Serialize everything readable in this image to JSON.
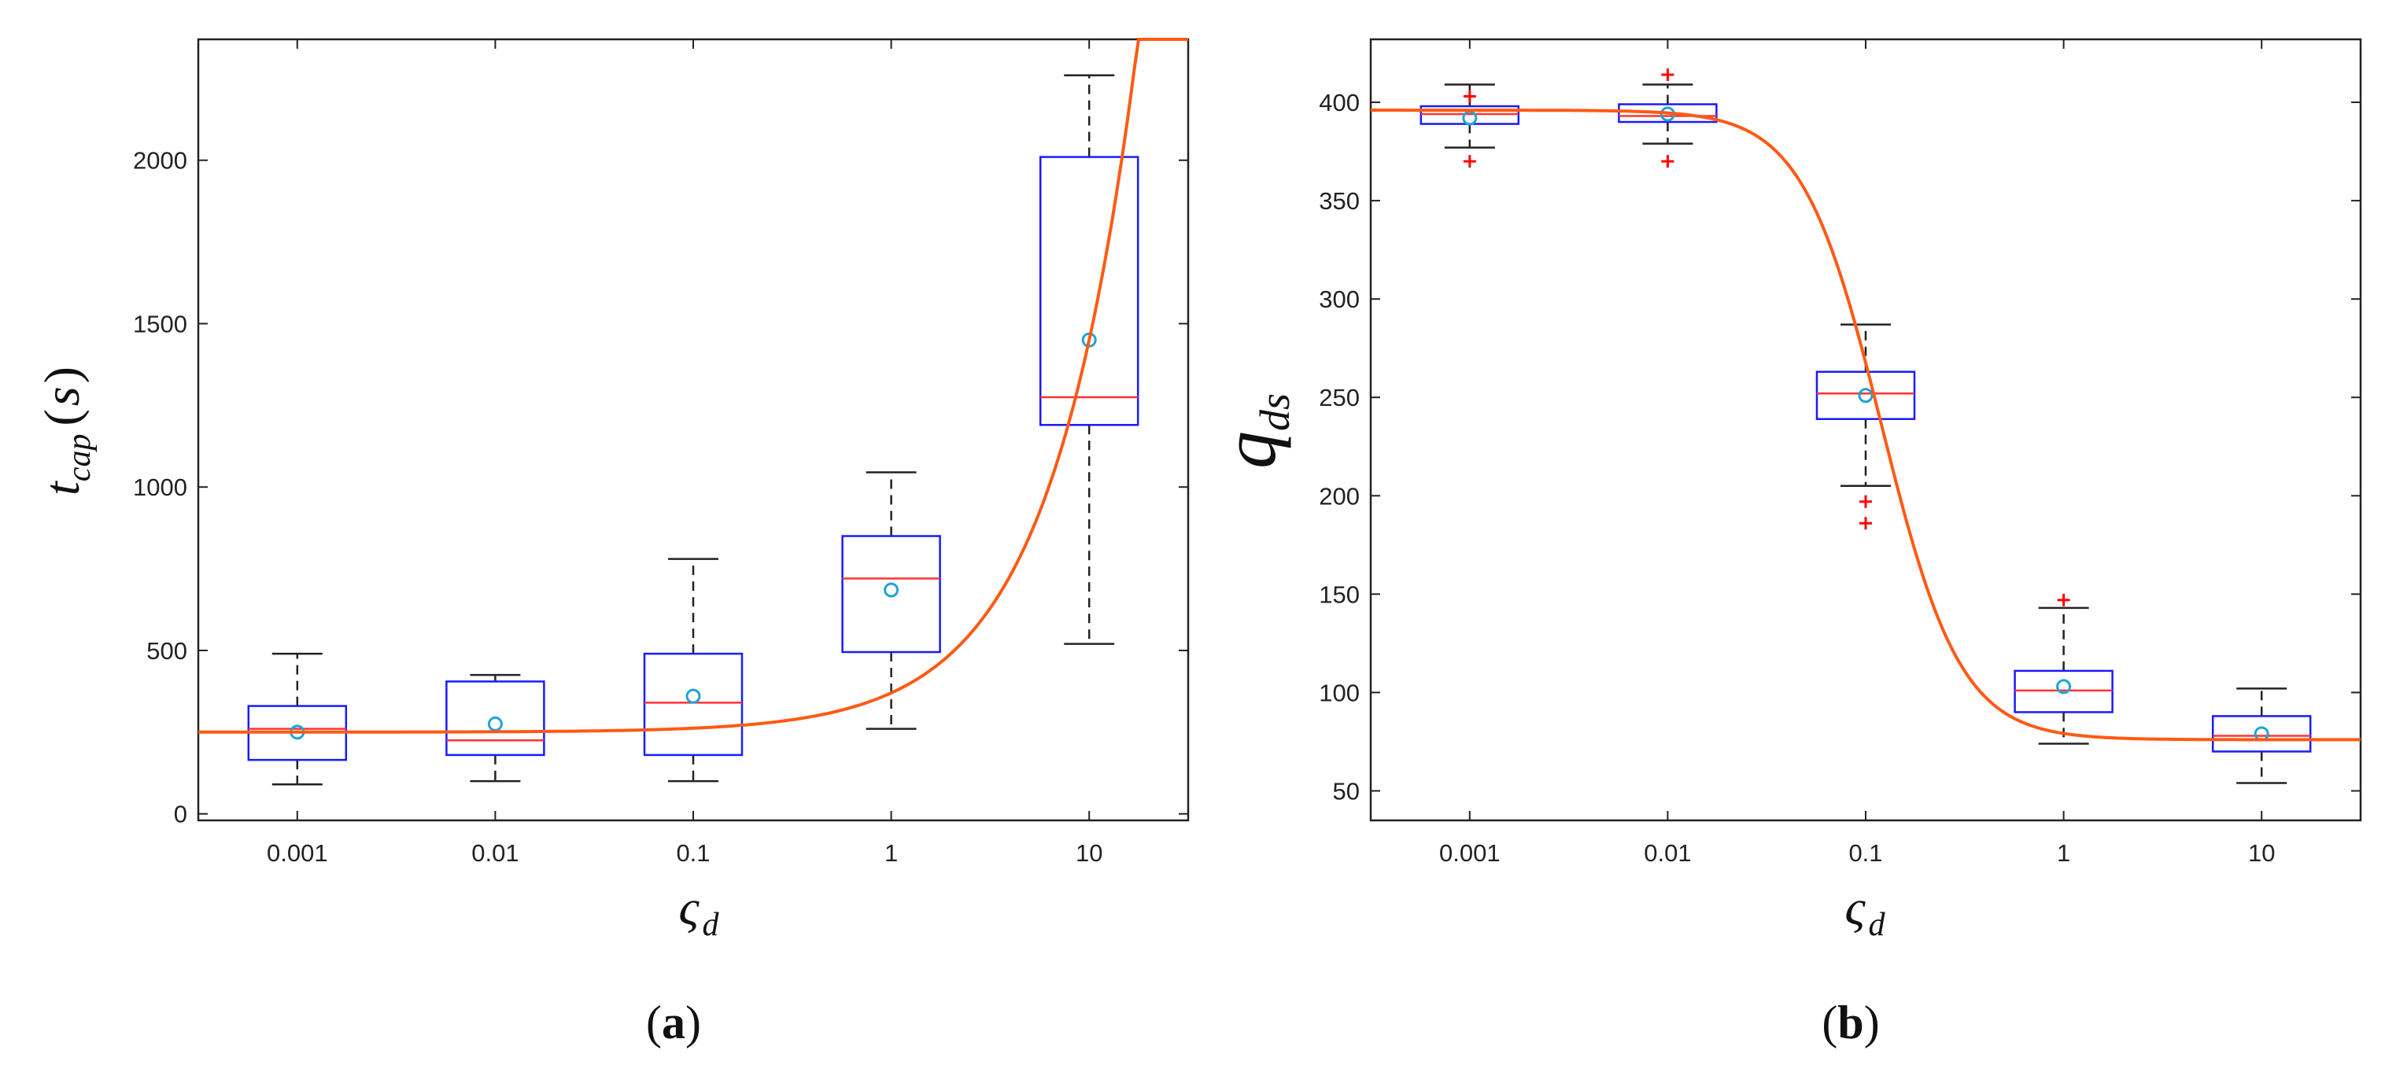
{
  "colors": {
    "box": "#1a1aff",
    "median": "#ff3333",
    "mean_marker": "#1fa3d6",
    "whisker": "#222222",
    "outlier": "#ff0000",
    "fit_curve": "#ff5a14",
    "axis": "#222222"
  },
  "chart_data": [
    {
      "type": "box",
      "panel_open": "(",
      "panel_letter": "a",
      "panel_close": ")",
      "ylabel_main": "t",
      "ylabel_sub": "cap",
      "ylabel_unit_open": "(",
      "ylabel_unit": "s",
      "ylabel_unit_close": ")",
      "xlabel_main": "ς",
      "xlabel_sub": "d",
      "ylim": [
        -20,
        2370
      ],
      "yticks": [
        0,
        500,
        1000,
        1500,
        2000
      ],
      "ytick_labels": [
        "0",
        "500",
        "1000",
        "1500",
        "2000"
      ],
      "xlim_log": [
        -3.5,
        1.5
      ],
      "categories": [
        "0.001",
        "0.01",
        "0.1",
        "1",
        "10"
      ],
      "boxes": [
        {
          "x": 0.001,
          "whisker_low": 90,
          "q1": 165,
          "median": 260,
          "q3": 330,
          "whisker_high": 490,
          "mean": 250,
          "outliers": []
        },
        {
          "x": 0.01,
          "whisker_low": 100,
          "q1": 180,
          "median": 225,
          "q3": 405,
          "whisker_high": 425,
          "mean": 275,
          "outliers": []
        },
        {
          "x": 0.1,
          "whisker_low": 100,
          "q1": 180,
          "median": 340,
          "q3": 490,
          "whisker_high": 780,
          "mean": 360,
          "outliers": []
        },
        {
          "x": 1,
          "whisker_low": 260,
          "q1": 495,
          "median": 720,
          "q3": 850,
          "whisker_high": 1045,
          "mean": 685,
          "outliers": []
        },
        {
          "x": 10,
          "whisker_low": 520,
          "q1": 1190,
          "median": 1275,
          "q3": 2010,
          "whisker_high": 2260,
          "mean": 1450,
          "outliers": []
        }
      ],
      "fit": {
        "type": "linear_in_x",
        "base": 250,
        "slope": 120,
        "x_range": [
          0.000316,
          31.6
        ]
      }
    },
    {
      "type": "box",
      "panel_open": "(",
      "panel_letter": "b",
      "panel_close": ")",
      "ylabel_main": "q",
      "ylabel_sub": "ds",
      "xlabel_main": "ς",
      "xlabel_sub": "d",
      "ylim": [
        35,
        432
      ],
      "yticks": [
        50,
        100,
        150,
        200,
        250,
        300,
        350,
        400
      ],
      "ytick_labels": [
        "50",
        "100",
        "150",
        "200",
        "250",
        "300",
        "350",
        "400"
      ],
      "xlim_log": [
        -3.5,
        1.5
      ],
      "categories": [
        "0.001",
        "0.01",
        "0.1",
        "1",
        "10"
      ],
      "boxes": [
        {
          "x": 0.001,
          "whisker_low": 377,
          "q1": 389,
          "median": 394,
          "q3": 398,
          "whisker_high": 409,
          "mean": 392,
          "outliers": [
            370,
            403
          ]
        },
        {
          "x": 0.01,
          "whisker_low": 379,
          "q1": 390,
          "median": 393,
          "q3": 399,
          "whisker_high": 409,
          "mean": 394,
          "outliers": [
            370,
            414
          ]
        },
        {
          "x": 0.1,
          "whisker_low": 205,
          "q1": 239,
          "median": 252,
          "q3": 263,
          "whisker_high": 287,
          "mean": 251,
          "outliers": [
            186,
            197
          ]
        },
        {
          "x": 1,
          "whisker_low": 74,
          "q1": 90,
          "median": 101,
          "q3": 111,
          "whisker_high": 143,
          "mean": 103,
          "outliers": [
            147
          ]
        },
        {
          "x": 10,
          "whisker_low": 54,
          "q1": 70,
          "median": 78,
          "q3": 88,
          "whisker_high": 102,
          "mean": 79,
          "outliers": []
        }
      ],
      "fit": {
        "type": "sigmoid_log",
        "high": 396,
        "low": 76,
        "center_log10": -0.92,
        "scale": 0.2,
        "x_range": [
          0.000316,
          31.6
        ]
      }
    }
  ]
}
